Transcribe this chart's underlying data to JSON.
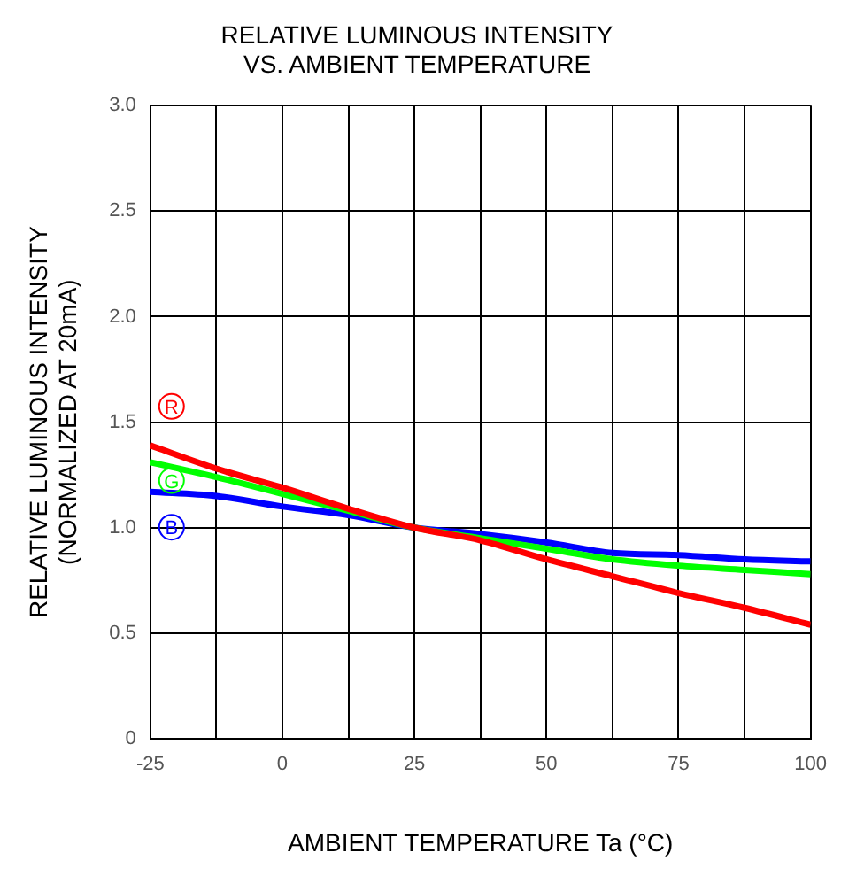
{
  "chart_data": {
    "type": "line",
    "title": "RELATIVE LUMINOUS INTENSITY\nVS. AMBIENT TEMPERATURE",
    "xlabel": "AMBIENT TEMPERATURE Ta (°C)",
    "ylabel": "RELATIVE LUMINOUS INTENSITY\n(NORMALIZED AT 20mA)",
    "x": [
      -25,
      -12.5,
      0,
      12.5,
      25,
      37.5,
      50,
      62.5,
      75,
      87.5,
      100
    ],
    "series": [
      {
        "name": "R",
        "color": "#ff0000",
        "values": [
          1.39,
          1.28,
          1.19,
          1.09,
          1.0,
          0.94,
          0.85,
          0.77,
          0.69,
          0.62,
          0.54
        ]
      },
      {
        "name": "G",
        "color": "#00ff00",
        "values": [
          1.31,
          1.24,
          1.16,
          1.08,
          1.0,
          0.95,
          0.9,
          0.85,
          0.82,
          0.8,
          0.78
        ]
      },
      {
        "name": "B",
        "color": "#0000ff",
        "values": [
          1.17,
          1.15,
          1.1,
          1.06,
          1.0,
          0.97,
          0.93,
          0.88,
          0.87,
          0.85,
          0.84
        ]
      }
    ],
    "xlim": [
      -25,
      100
    ],
    "xticks": [
      -25,
      {
        "value": -12.5,
        "label": null
      },
      0,
      {
        "value": 12.5,
        "label": null
      },
      25,
      {
        "value": 37.5,
        "label": null
      },
      50,
      {
        "value": 62.5,
        "label": null
      },
      75,
      {
        "value": 87.5,
        "label": null
      },
      100
    ],
    "ylim": [
      0,
      3
    ],
    "yticks": [
      0,
      0.5,
      {
        "value": 1,
        "label": "1.0"
      },
      1.5,
      {
        "value": 2,
        "label": "2.0"
      },
      2.5,
      {
        "value": 3,
        "label": "3.0"
      }
    ],
    "grid": true,
    "marker": "none",
    "line_style": "solid",
    "legend": "left"
  }
}
